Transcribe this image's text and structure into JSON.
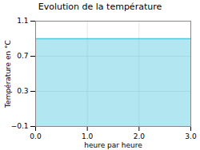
{
  "chart_data": {
    "type": "area",
    "title": "Evolution de la température",
    "x": [
      0,
      3
    ],
    "values": [
      0.9,
      0.9
    ],
    "color": "#55c8e0",
    "xlim": [
      0,
      3
    ],
    "ylim": [
      -0.1,
      1.1
    ],
    "xticks": [
      0,
      1,
      2,
      3
    ],
    "yticks": [
      -0.1,
      0.3,
      0.7,
      1.1
    ],
    "xlabel": "heure par heure",
    "ylabel": "Température en °C",
    "grid": true
  }
}
